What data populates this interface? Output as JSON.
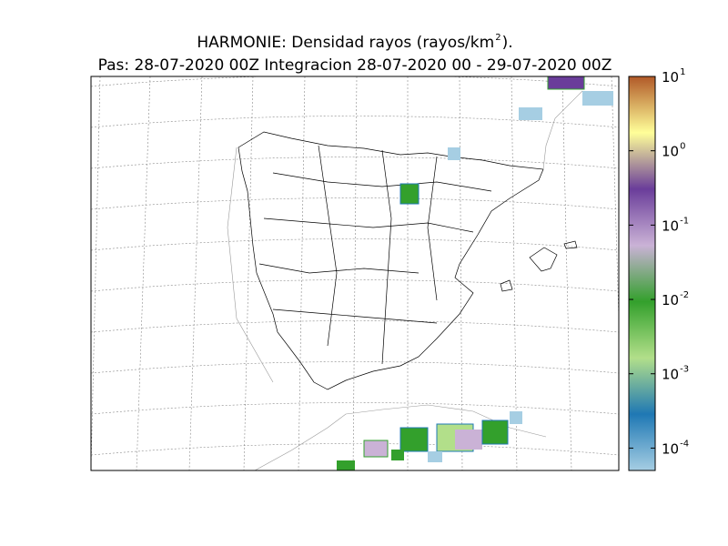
{
  "header": {
    "title_prefix": "HARMONIE: Densidad rayos  (rayos/km",
    "title_sup": "2",
    "title_suffix": " ).",
    "subtitle": "Pas: 28-07-2020 00Z Integracion 28-07-2020 00 - 29-07-2020 00Z"
  },
  "colorbar": {
    "scale": "log",
    "lim": [
      5e-05,
      10
    ],
    "colors": [
      "#a6cee3",
      "#1f78b4",
      "#b2df8a",
      "#33a02c",
      "#cab2d6",
      "#6a3d9a",
      "#ffff99",
      "#b15928"
    ],
    "ticks": [
      {
        "value": 10,
        "base": "10",
        "exponent": "1"
      },
      {
        "value": 1,
        "base": "10",
        "exponent": "0"
      },
      {
        "value": 0.1,
        "base": "10",
        "exponent": "-1"
      },
      {
        "value": 0.01,
        "base": "10",
        "exponent": "-2"
      },
      {
        "value": 0.001,
        "base": "10",
        "exponent": "-3"
      },
      {
        "value": 0.0001,
        "base": "10",
        "exponent": "-4"
      }
    ]
  }
}
